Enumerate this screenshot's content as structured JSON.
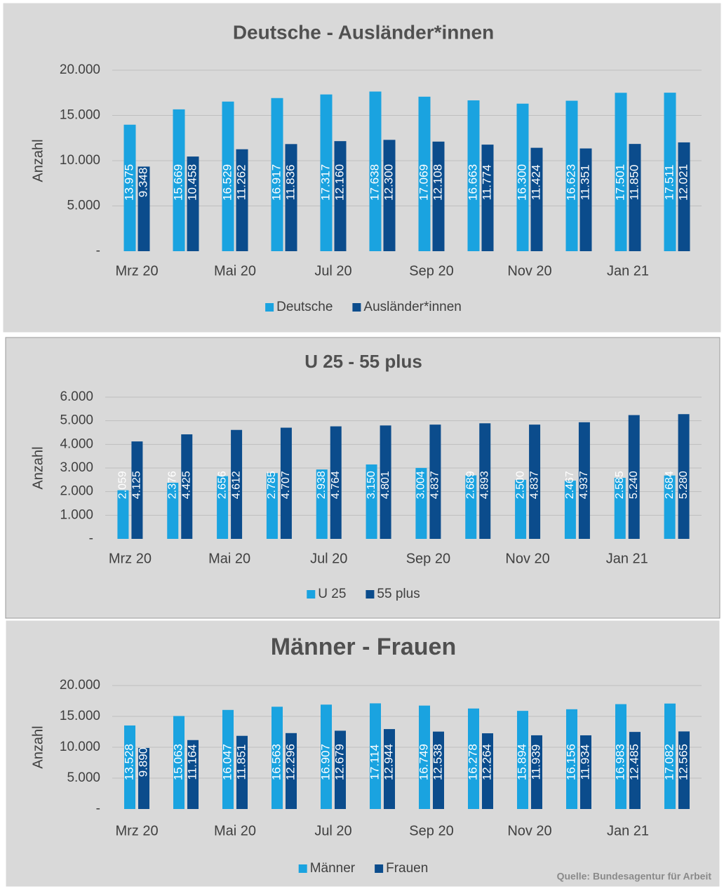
{
  "chart_data": [
    {
      "type": "bar",
      "title": "Deutsche - Ausländer*innen",
      "y_label": "Anzahl",
      "categories": [
        "Mrz 20",
        null,
        "Mai 20",
        null,
        "Jul 20",
        null,
        "Sep 20",
        null,
        "Nov 20",
        null,
        "Jan 21",
        null
      ],
      "series": [
        {
          "name": "Deutsche",
          "color": "#1aa3e0",
          "values": [
            13975,
            15669,
            16529,
            16917,
            17317,
            17638,
            17069,
            16663,
            16300,
            16623,
            17501,
            17511
          ],
          "value_labels": [
            "13.975",
            "15.669",
            "16.529",
            "16.917",
            "17.317",
            "17.638",
            "17.069",
            "16.663",
            "16.300",
            "16.623",
            "17.501",
            "17.511"
          ]
        },
        {
          "name": "Ausländer*innen",
          "color": "#0b4c8c",
          "values": [
            9348,
            10458,
            11262,
            11836,
            12160,
            12300,
            12108,
            11774,
            11424,
            11351,
            11850,
            12021
          ],
          "value_labels": [
            "9.348",
            "10.458",
            "11.262",
            "11.836",
            "12.160",
            "12.300",
            "12.108",
            "11.774",
            "11.424",
            "11.351",
            "11.850",
            "12.021"
          ]
        }
      ],
      "ylim": [
        0,
        20000
      ],
      "yticks": [
        {
          "value": 0,
          "label": "-"
        },
        {
          "value": 5000,
          "label": "5.000"
        },
        {
          "value": 10000,
          "label": "10.000"
        },
        {
          "value": 15000,
          "label": "15.000"
        },
        {
          "value": 20000,
          "label": "20.000"
        }
      ],
      "grid": true,
      "legend": "bottom"
    },
    {
      "type": "bar",
      "title": "U 25 - 55 plus",
      "y_label": "Anzahl",
      "categories": [
        "Mrz 20",
        null,
        "Mai 20",
        null,
        "Jul 20",
        null,
        "Sep 20",
        null,
        "Nov 20",
        null,
        "Jan 21",
        null
      ],
      "series": [
        {
          "name": "U 25",
          "color": "#1aa3e0",
          "values": [
            2059,
            2376,
            2656,
            2785,
            2938,
            3150,
            3004,
            2689,
            2500,
            2467,
            2585,
            2684
          ],
          "value_labels": [
            "2.059",
            "2.376",
            "2.656",
            "2.785",
            "2.938",
            "3.150",
            "3.004",
            "2.689",
            "2.500",
            "2.467",
            "2.585",
            "2.684"
          ]
        },
        {
          "name": "55 plus",
          "color": "#0b4c8c",
          "values": [
            4125,
            4425,
            4612,
            4707,
            4764,
            4801,
            4837,
            4893,
            4837,
            4937,
            5240,
            5280
          ],
          "value_labels": [
            "4.125",
            "4.425",
            "4.612",
            "4.707",
            "4.764",
            "4.801",
            "4.837",
            "4.893",
            "4.837",
            "4.937",
            "5.240",
            "5.280"
          ]
        }
      ],
      "ylim": [
        0,
        6000
      ],
      "yticks": [
        {
          "value": 0,
          "label": "-"
        },
        {
          "value": 1000,
          "label": "1.000"
        },
        {
          "value": 2000,
          "label": "2.000"
        },
        {
          "value": 3000,
          "label": "3.000"
        },
        {
          "value": 4000,
          "label": "4.000"
        },
        {
          "value": 5000,
          "label": "5.000"
        },
        {
          "value": 6000,
          "label": "6.000"
        }
      ],
      "grid": true,
      "legend": "bottom"
    },
    {
      "type": "bar",
      "title": "Männer - Frauen",
      "y_label": "Anzahl",
      "categories": [
        "Mrz 20",
        null,
        "Mai 20",
        null,
        "Jul 20",
        null,
        "Sep 20",
        null,
        "Nov 20",
        null,
        "Jan 21",
        null
      ],
      "series": [
        {
          "name": "Männer",
          "color": "#1aa3e0",
          "values": [
            13528,
            15063,
            16047,
            16563,
            16907,
            17114,
            16749,
            16278,
            15894,
            16156,
            16983,
            17082
          ],
          "value_labels": [
            "13.528",
            "15.063",
            "16.047",
            "16.563",
            "16.907",
            "17.114",
            "16.749",
            "16.278",
            "15.894",
            "16.156",
            "16.983",
            "17.082"
          ]
        },
        {
          "name": "Frauen",
          "color": "#0b4c8c",
          "values": [
            9890,
            11164,
            11851,
            12296,
            12679,
            12944,
            12538,
            12264,
            11939,
            11934,
            12485,
            12565
          ],
          "value_labels": [
            "9.890",
            "11.164",
            "11.851",
            "12.296",
            "12.679",
            "12.944",
            "12.538",
            "12.264",
            "11.939",
            "11.934",
            "12.485",
            "12.565"
          ]
        }
      ],
      "ylim": [
        0,
        20000
      ],
      "yticks": [
        {
          "value": 0,
          "label": "-"
        },
        {
          "value": 5000,
          "label": "5.000"
        },
        {
          "value": 10000,
          "label": "10.000"
        },
        {
          "value": 15000,
          "label": "15.000"
        },
        {
          "value": 20000,
          "label": "20.000"
        }
      ],
      "grid": true,
      "legend": "bottom"
    }
  ],
  "source": "Quelle: Bundesagentur für Arbeit"
}
